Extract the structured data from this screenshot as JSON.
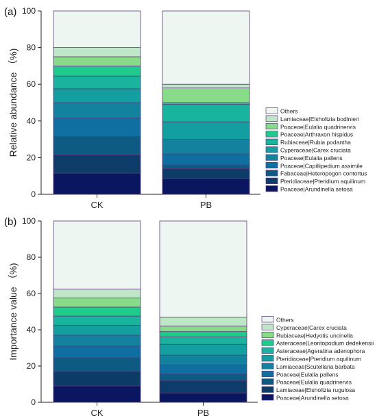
{
  "chart_data": [
    {
      "type": "bar",
      "stacked": true,
      "panel_label": "(a)",
      "title": "",
      "xlabel": "",
      "ylabel": "Relative abundance （%)",
      "ylim": [
        0,
        100
      ],
      "yticks": [
        0,
        20,
        40,
        60,
        80,
        100
      ],
      "categories": [
        "CK",
        "PB"
      ],
      "legend_position": "right",
      "series": [
        {
          "name": "Poaceae|Arundinella setosa",
          "color": "#0b1660",
          "values": [
            11.5,
            8.5
          ]
        },
        {
          "name": "Pteridiaceae|Pteridium aquilinum",
          "color": "#0d3c68",
          "values": [
            10.0,
            5.5
          ]
        },
        {
          "name": "Fabaceae|Heteropogon contortus",
          "color": "#0d5a82",
          "values": [
            10.0,
            2.0
          ]
        },
        {
          "name": "Poaceae|Capillipedium assimile",
          "color": "#0f6fa0",
          "values": [
            10.0,
            6.0
          ]
        },
        {
          "name": "Poaceae|Eulalia pallens",
          "color": "#12829e",
          "values": [
            8.5,
            8.0
          ]
        },
        {
          "name": "Cyperaceae|Carex cruciata",
          "color": "#139f9f",
          "values": [
            7.5,
            9.5
          ]
        },
        {
          "name": "Rubiaceae|Rubia podantha",
          "color": "#18b49d",
          "values": [
            7.0,
            9.5
          ]
        },
        {
          "name": "Poaceae|Arthraxon hispidus",
          "color": "#1ecb8a",
          "values": [
            5.5,
            1.0
          ]
        },
        {
          "name": "Poaceae|Eulalia quadrinervis",
          "color": "#88dc88",
          "values": [
            5.0,
            8.0
          ]
        },
        {
          "name": "Lamiaceae|Elsholtzia bodinieri",
          "color": "#bfe6c6",
          "values": [
            5.0,
            2.0
          ]
        },
        {
          "name": "Others",
          "color": "#eef6f1",
          "values": [
            20.0,
            40.0
          ]
        }
      ]
    },
    {
      "type": "bar",
      "stacked": true,
      "panel_label": "(b)",
      "title": "",
      "xlabel": "",
      "ylabel": "Importance value （%)",
      "ylim": [
        0,
        100
      ],
      "yticks": [
        0,
        20,
        40,
        60,
        80,
        100
      ],
      "categories": [
        "CK",
        "PB"
      ],
      "legend_position": "right",
      "series": [
        {
          "name": "Poaceae|Arundinella setosa",
          "color": "#0b1660",
          "values": [
            9.0,
            5.0
          ]
        },
        {
          "name": "Lamiaceae|Elsholtzia rugulosa",
          "color": "#0d3c68",
          "values": [
            8.0,
            7.0
          ]
        },
        {
          "name": "Poaceae|Eulalia quadrinervis",
          "color": "#0d5a82",
          "values": [
            7.5,
            3.5
          ]
        },
        {
          "name": "Poaceae|Eulalia pallens",
          "color": "#0f6fa0",
          "values": [
            6.5,
            5.0
          ]
        },
        {
          "name": "Lamiaceae|Scutellaria barbata",
          "color": "#12829e",
          "values": [
            6.0,
            5.5
          ]
        },
        {
          "name": "Pteridiaceae|Pteridium aquilinum",
          "color": "#139f9f",
          "values": [
            5.5,
            6.0
          ]
        },
        {
          "name": "Asteraceae|Ageratina adenophora",
          "color": "#18b49d",
          "values": [
            5.0,
            4.0
          ]
        },
        {
          "name": "Asteraceae|Leontopodium dedekensii",
          "color": "#1ecb8a",
          "values": [
            5.0,
            3.0
          ]
        },
        {
          "name": "Rubiaceae|Hedyotis uncinella",
          "color": "#88dc88",
          "values": [
            5.0,
            3.0
          ]
        },
        {
          "name": "Cyperaceae|Carex cruciata",
          "color": "#bfe6c6",
          "values": [
            5.0,
            5.0
          ]
        },
        {
          "name": "Others",
          "color": "#eef6f1",
          "values": [
            37.5,
            53.0
          ]
        }
      ]
    }
  ]
}
